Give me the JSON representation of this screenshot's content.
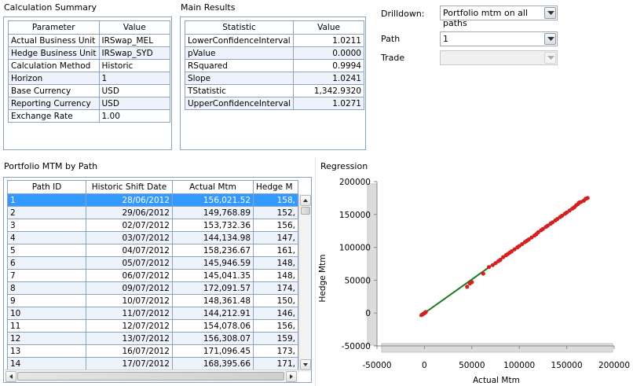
{
  "calc_summary": {
    "title": "Calculation Summary",
    "headers": [
      "Parameter",
      "Value"
    ],
    "rows": [
      [
        "Actual Business Unit",
        "IRSwap_MEL"
      ],
      [
        "Hedge Business Unit",
        "IRSwap_SYD"
      ],
      [
        "Calculation Method",
        "Historic"
      ],
      [
        "Horizon",
        "1"
      ],
      [
        "Base Currency",
        "USD"
      ],
      [
        "Reporting Currency",
        "USD"
      ],
      [
        "Exchange Rate",
        "1.00"
      ]
    ]
  },
  "main_results": {
    "title": "Main Results",
    "headers": [
      "Statistic",
      "Value"
    ],
    "rows": [
      [
        "LowerConfidenceInterval",
        "1.0211"
      ],
      [
        "pValue",
        "0.0000"
      ],
      [
        "RSquared",
        "0.9994"
      ],
      [
        "Slope",
        "1.0241"
      ],
      [
        "TStatistic",
        "1,342.9320"
      ],
      [
        "UpperConfidenceInterval",
        "1.0271"
      ]
    ]
  },
  "drilldown": {
    "drilldown_label": "Drilldown:",
    "drilldown_value": "Portfolio mtm on all paths",
    "path_label": "Path",
    "path_value": "1",
    "trade_label": "Trade",
    "trade_value": ""
  },
  "mtm_by_path": {
    "title": "Portfolio MTM by Path",
    "headers": [
      "Path ID",
      "Historic Shift Date",
      "Actual Mtm",
      "Hedge M"
    ],
    "rows": [
      [
        "1",
        "28/06/2012",
        "156,021.52",
        "158,"
      ],
      [
        "2",
        "29/06/2012",
        "149,768.89",
        "152,"
      ],
      [
        "3",
        "02/07/2012",
        "153,732.36",
        "156,"
      ],
      [
        "4",
        "03/07/2012",
        "144,134.98",
        "147,"
      ],
      [
        "5",
        "04/07/2012",
        "158,236.67",
        "161,"
      ],
      [
        "6",
        "05/07/2012",
        "145,946.59",
        "148,"
      ],
      [
        "7",
        "06/07/2012",
        "145,041.35",
        "148,"
      ],
      [
        "8",
        "09/07/2012",
        "172,091.57",
        "174,"
      ],
      [
        "9",
        "10/07/2012",
        "148,361.48",
        "150,"
      ],
      [
        "10",
        "11/07/2012",
        "144,212.91",
        "146,"
      ],
      [
        "11",
        "12/07/2012",
        "154,078.06",
        "156,"
      ],
      [
        "12",
        "13/07/2012",
        "156,308.07",
        "159,"
      ],
      [
        "13",
        "16/07/2012",
        "171,096.45",
        "173,"
      ],
      [
        "14",
        "17/07/2012",
        "168,395.66",
        "171,"
      ]
    ],
    "selected_row": 0
  },
  "regression": {
    "title": "Regression",
    "colors": {
      "points": "#d62020",
      "line": "#1e7a1e"
    }
  },
  "chart_data": {
    "type": "scatter",
    "title": "Regression",
    "xlabel": "Actual Mtm",
    "ylabel": "Hedge Mtm",
    "xlim": [
      -50000,
      200000
    ],
    "ylim": [
      -50000,
      200000
    ],
    "xticks": [
      "-50000",
      "0",
      "50000",
      "100000",
      "150000",
      "200000"
    ],
    "yticks": [
      "-50000",
      "0",
      "50000",
      "100000",
      "150000",
      "200000"
    ],
    "series": [
      {
        "type": "scatter",
        "points": [
          [
            -3000,
            -3000
          ],
          [
            -1500,
            -1500
          ],
          [
            -500,
            -800
          ],
          [
            0,
            0
          ],
          [
            500,
            500
          ],
          [
            1500,
            1600
          ],
          [
            45000,
            40000
          ],
          [
            48000,
            45000
          ],
          [
            50000,
            47000
          ],
          [
            62000,
            60000
          ],
          [
            68000,
            70000
          ],
          [
            72000,
            73000
          ],
          [
            75000,
            76000
          ],
          [
            78000,
            79000
          ],
          [
            80000,
            81000
          ],
          [
            83000,
            85000
          ],
          [
            86000,
            88000
          ],
          [
            88000,
            90000
          ],
          [
            90000,
            92000
          ],
          [
            92000,
            94000
          ],
          [
            95000,
            97000
          ],
          [
            98000,
            100000
          ],
          [
            100000,
            102000
          ],
          [
            103000,
            105000
          ],
          [
            106000,
            108000
          ],
          [
            108000,
            110000
          ],
          [
            110000,
            112000
          ],
          [
            113000,
            115000
          ],
          [
            116000,
            118000
          ],
          [
            118000,
            120000
          ],
          [
            120000,
            123000
          ],
          [
            123000,
            126000
          ],
          [
            125000,
            128000
          ],
          [
            128000,
            131000
          ],
          [
            130000,
            133000
          ],
          [
            133000,
            136000
          ],
          [
            135000,
            138000
          ],
          [
            138000,
            141000
          ],
          [
            140000,
            143000
          ],
          [
            143000,
            146000
          ],
          [
            145000,
            148000
          ],
          [
            148000,
            151000
          ],
          [
            150000,
            153000
          ],
          [
            153000,
            156000
          ],
          [
            156000,
            159000
          ],
          [
            158000,
            161000
          ],
          [
            160000,
            164000
          ],
          [
            162000,
            166000
          ],
          [
            165000,
            169000
          ],
          [
            168000,
            171000
          ],
          [
            170000,
            174000
          ],
          [
            172000,
            175000
          ],
          [
            163000,
            168000
          ]
        ]
      },
      {
        "type": "line",
        "points": [
          [
            -5000,
            -5200
          ],
          [
            172000,
            176000
          ]
        ]
      }
    ]
  }
}
